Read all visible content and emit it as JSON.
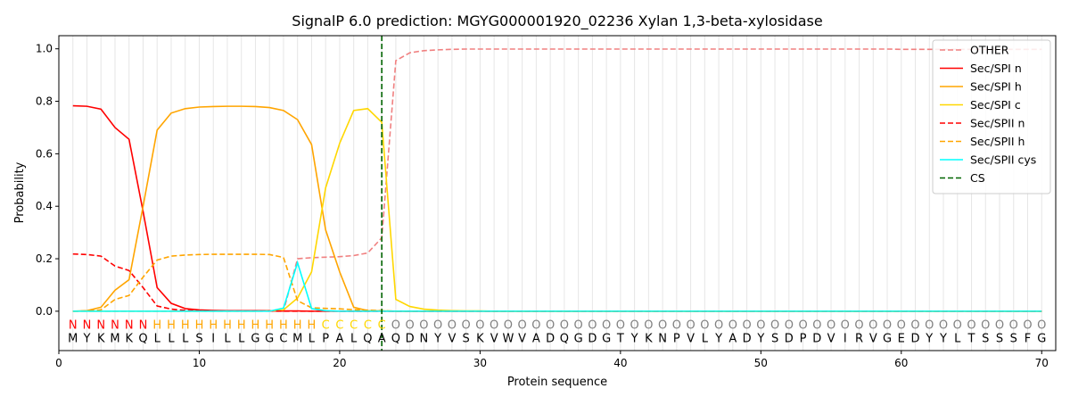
{
  "chart_data": {
    "type": "line",
    "title": "SignalP 6.0 prediction: MGYG000001920_02236 Xylan 1,3-beta-xylosidase",
    "xlabel": "Protein sequence",
    "ylabel": "Probability",
    "xlim": [
      0,
      71
    ],
    "ylim": [
      -0.15,
      1.05
    ],
    "xticks": [
      0,
      10,
      20,
      30,
      40,
      50,
      60,
      70
    ],
    "yticks": [
      0.0,
      0.2,
      0.4,
      0.6,
      0.8,
      1.0
    ],
    "grid": "vertical lines at each residue",
    "legend_position": "top-right",
    "sequence": [
      "M",
      "Y",
      "K",
      "M",
      "K",
      "Q",
      "L",
      "L",
      "L",
      "S",
      "I",
      "L",
      "L",
      "G",
      "G",
      "C",
      "M",
      "L",
      "P",
      "A",
      "L",
      "Q",
      "A",
      "Q",
      "D",
      "N",
      "Y",
      "V",
      "S",
      "K",
      "V",
      "W",
      "V",
      "A",
      "D",
      "Q",
      "G",
      "D",
      "G",
      "T",
      "Y",
      "K",
      "N",
      "P",
      "V",
      "L",
      "Y",
      "A",
      "D",
      "Y",
      "S",
      "D",
      "P",
      "D",
      "V",
      "I",
      "R",
      "V",
      "G",
      "E",
      "D",
      "Y",
      "Y",
      "L",
      "T",
      "S",
      "S",
      "S",
      "F",
      "G"
    ],
    "labels": [
      "N",
      "N",
      "N",
      "N",
      "N",
      "N",
      "H",
      "H",
      "H",
      "H",
      "H",
      "H",
      "H",
      "H",
      "H",
      "H",
      "H",
      "H",
      "C",
      "C",
      "C",
      "C",
      "C",
      "O",
      "O",
      "O",
      "O",
      "O",
      "O",
      "O",
      "O",
      "O",
      "O",
      "O",
      "O",
      "O",
      "O",
      "O",
      "O",
      "O",
      "O",
      "O",
      "O",
      "O",
      "O",
      "O",
      "O",
      "O",
      "O",
      "O",
      "O",
      "O",
      "O",
      "O",
      "O",
      "O",
      "O",
      "O",
      "O",
      "O",
      "O",
      "O",
      "O",
      "O",
      "O",
      "O",
      "O",
      "O",
      "O",
      "O"
    ],
    "label_colors": {
      "N": "#ff0000",
      "H": "#ffa500",
      "C": "#ffd700",
      "O": "#808080"
    },
    "cs_position": 23,
    "series": [
      {
        "name": "OTHER",
        "color": "#f08080",
        "dash": "dashed",
        "values": [
          0.0,
          0.0,
          0.0,
          0.0,
          0.0,
          0.0,
          0.0,
          0.0,
          0.0,
          0.0,
          0.0,
          0.0,
          0.0,
          0.0,
          0.0,
          0.0,
          0.2,
          0.204,
          0.206,
          0.208,
          0.212,
          0.222,
          0.28,
          0.955,
          0.985,
          0.993,
          0.996,
          0.998,
          0.999,
          0.999,
          0.999,
          0.999,
          0.999,
          0.999,
          0.999,
          0.999,
          0.999,
          0.999,
          0.999,
          0.999,
          0.999,
          0.999,
          0.999,
          0.999,
          0.999,
          0.999,
          0.999,
          0.999,
          0.999,
          0.999,
          0.999,
          0.999,
          0.999,
          0.999,
          0.999,
          0.999,
          0.999,
          0.999,
          0.999,
          0.998,
          0.998,
          0.998,
          0.998,
          0.998,
          0.998,
          0.998,
          0.998,
          0.998,
          0.998,
          0.998
        ]
      },
      {
        "name": "Sec/SPI n",
        "color": "#ff0000",
        "dash": "solid",
        "values": [
          0.783,
          0.781,
          0.77,
          0.7,
          0.655,
          0.38,
          0.09,
          0.03,
          0.01,
          0.005,
          0.003,
          0.002,
          0.002,
          0.002,
          0.002,
          0.001,
          0.001,
          0.0,
          0.0,
          0.0,
          0.0,
          0.0,
          0.0,
          0.0,
          0.0,
          0.0,
          0.0,
          0.0,
          0.0,
          0.0,
          0.0,
          0.0,
          0.0,
          0.0,
          0.0,
          0.0,
          0.0,
          0.0,
          0.0,
          0.0,
          0.0,
          0.0,
          0.0,
          0.0,
          0.0,
          0.0,
          0.0,
          0.0,
          0.0,
          0.0,
          0.0,
          0.0,
          0.0,
          0.0,
          0.0,
          0.0,
          0.0,
          0.0,
          0.0,
          0.0,
          0.0,
          0.0,
          0.0,
          0.0,
          0.0,
          0.0,
          0.0,
          0.0,
          0.0,
          0.0
        ]
      },
      {
        "name": "Sec/SPI h",
        "color": "#ffa500",
        "dash": "solid",
        "values": [
          0.0,
          0.002,
          0.015,
          0.08,
          0.12,
          0.4,
          0.69,
          0.755,
          0.772,
          0.778,
          0.78,
          0.781,
          0.781,
          0.78,
          0.776,
          0.765,
          0.73,
          0.635,
          0.31,
          0.15,
          0.015,
          0.002,
          0.001,
          0.0,
          0.0,
          0.0,
          0.0,
          0.0,
          0.0,
          0.0,
          0.0,
          0.0,
          0.0,
          0.0,
          0.0,
          0.0,
          0.0,
          0.0,
          0.0,
          0.0,
          0.0,
          0.0,
          0.0,
          0.0,
          0.0,
          0.0,
          0.0,
          0.0,
          0.0,
          0.0,
          0.0,
          0.0,
          0.0,
          0.0,
          0.0,
          0.0,
          0.0,
          0.0,
          0.0,
          0.0,
          0.0,
          0.0,
          0.0,
          0.0,
          0.0,
          0.0,
          0.0,
          0.0,
          0.0,
          0.0
        ]
      },
      {
        "name": "Sec/SPI c",
        "color": "#ffd700",
        "dash": "solid",
        "values": [
          0.0,
          0.0,
          0.0,
          0.0,
          0.0,
          0.0,
          0.0,
          0.0,
          0.0,
          0.0,
          0.0,
          0.0,
          0.0,
          0.0,
          0.001,
          0.005,
          0.05,
          0.15,
          0.47,
          0.64,
          0.765,
          0.772,
          0.72,
          0.045,
          0.018,
          0.008,
          0.004,
          0.002,
          0.001,
          0.001,
          0.0,
          0.0,
          0.0,
          0.0,
          0.0,
          0.0,
          0.0,
          0.0,
          0.0,
          0.0,
          0.0,
          0.0,
          0.0,
          0.0,
          0.0,
          0.0,
          0.0,
          0.0,
          0.0,
          0.0,
          0.0,
          0.0,
          0.0,
          0.0,
          0.0,
          0.0,
          0.0,
          0.0,
          0.0,
          0.0,
          0.0,
          0.0,
          0.0,
          0.0,
          0.0,
          0.0,
          0.0,
          0.0,
          0.0,
          0.0
        ]
      },
      {
        "name": "Sec/SPII n",
        "color": "#ff0000",
        "dash": "dashed",
        "values": [
          0.218,
          0.216,
          0.21,
          0.172,
          0.155,
          0.09,
          0.02,
          0.008,
          0.003,
          0.002,
          0.001,
          0.001,
          0.001,
          0.001,
          0.001,
          0.0,
          0.0,
          0.0,
          0.0,
          0.0,
          0.0,
          0.0,
          0.0,
          0.0,
          0.0,
          0.0,
          0.0,
          0.0,
          0.0,
          0.0,
          0.0,
          0.0,
          0.0,
          0.0,
          0.0,
          0.0,
          0.0,
          0.0,
          0.0,
          0.0,
          0.0,
          0.0,
          0.0,
          0.0,
          0.0,
          0.0,
          0.0,
          0.0,
          0.0,
          0.0,
          0.0,
          0.0,
          0.0,
          0.0,
          0.0,
          0.0,
          0.0,
          0.0,
          0.0,
          0.0,
          0.0,
          0.0,
          0.0,
          0.0,
          0.0,
          0.0,
          0.0,
          0.0,
          0.0,
          0.0
        ]
      },
      {
        "name": "Sec/SPII h",
        "color": "#ffa500",
        "dash": "dashed",
        "values": [
          0.0,
          0.001,
          0.005,
          0.045,
          0.06,
          0.13,
          0.195,
          0.21,
          0.214,
          0.216,
          0.217,
          0.217,
          0.217,
          0.217,
          0.216,
          0.205,
          0.04,
          0.013,
          0.011,
          0.009,
          0.006,
          0.004,
          0.002,
          0.0,
          0.0,
          0.0,
          0.0,
          0.0,
          0.0,
          0.0,
          0.0,
          0.0,
          0.0,
          0.0,
          0.0,
          0.0,
          0.0,
          0.0,
          0.0,
          0.0,
          0.0,
          0.0,
          0.0,
          0.0,
          0.0,
          0.0,
          0.0,
          0.0,
          0.0,
          0.0,
          0.0,
          0.0,
          0.0,
          0.0,
          0.0,
          0.0,
          0.0,
          0.0,
          0.0,
          0.0,
          0.0,
          0.0,
          0.0,
          0.0,
          0.0,
          0.0,
          0.0,
          0.0,
          0.0,
          0.0
        ]
      },
      {
        "name": "Sec/SPII cys",
        "color": "#00ffff",
        "dash": "solid",
        "values": [
          0.0,
          0.0,
          0.0,
          0.0,
          0.0,
          0.0,
          0.0,
          0.0,
          0.0,
          0.0,
          0.0,
          0.0,
          0.0,
          0.0,
          0.0,
          0.012,
          0.185,
          0.01,
          0.002,
          0.0,
          0.0,
          0.0,
          0.0,
          0.0,
          0.0,
          0.0,
          0.0,
          0.0,
          0.0,
          0.0,
          0.0,
          0.0,
          0.0,
          0.0,
          0.0,
          0.0,
          0.0,
          0.0,
          0.0,
          0.0,
          0.0,
          0.0,
          0.0,
          0.0,
          0.0,
          0.0,
          0.0,
          0.0,
          0.0,
          0.0,
          0.0,
          0.0,
          0.0,
          0.0,
          0.0,
          0.0,
          0.0,
          0.0,
          0.0,
          0.0,
          0.0,
          0.0,
          0.0,
          0.0,
          0.0,
          0.0,
          0.0,
          0.0,
          0.0,
          0.0
        ]
      }
    ],
    "cs_legend": {
      "name": "CS",
      "color": "#006400",
      "dash": "dashed"
    }
  }
}
